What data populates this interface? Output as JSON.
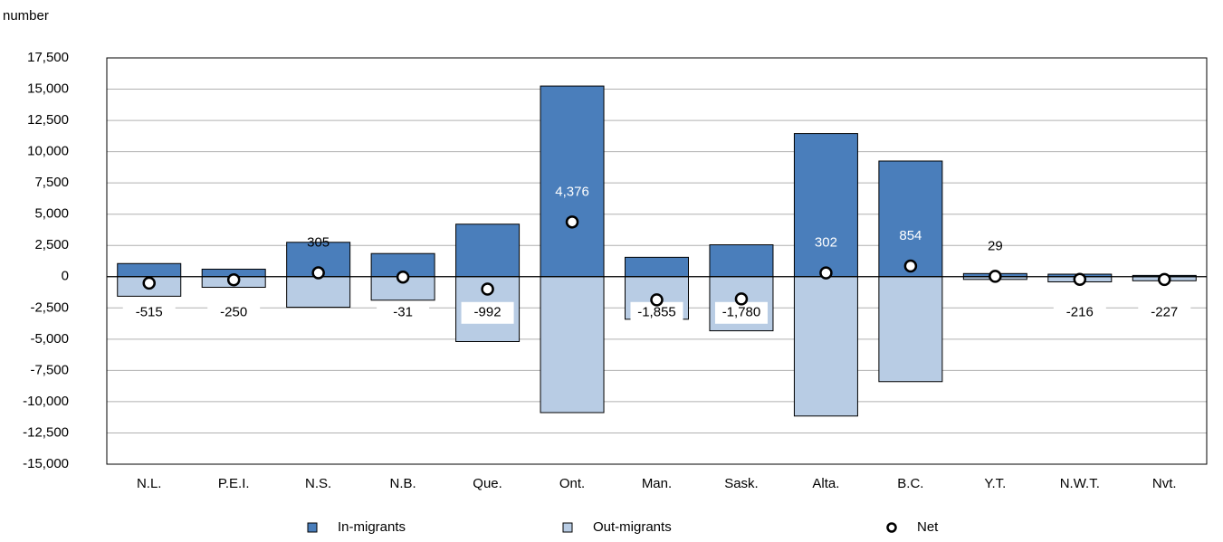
{
  "chart_data": {
    "type": "bar",
    "y_label": "number",
    "categories": [
      "N.L.",
      "P.E.I.",
      "N.S.",
      "N.B.",
      "Que.",
      "Ont.",
      "Man.",
      "Sask.",
      "Alta.",
      "B.C.",
      "Y.T.",
      "N.W.T.",
      "Nvt."
    ],
    "series": [
      {
        "name": "In-migrants",
        "type": "bar",
        "color": "#4a7ebb",
        "values": [
          1050,
          600,
          2750,
          1850,
          4200,
          15250,
          1550,
          2550,
          11450,
          9250,
          250,
          200,
          100
        ]
      },
      {
        "name": "Out-migrants",
        "type": "bar",
        "color": "#b8cce4",
        "values": [
          -1565,
          -850,
          -2445,
          -1881,
          -5192,
          -10874,
          -3405,
          -4330,
          -11148,
          -8396,
          -221,
          -416,
          -327
        ]
      },
      {
        "name": "Net",
        "type": "scatter",
        "color": "#ffffff",
        "values": [
          -515,
          -250,
          305,
          -31,
          -992,
          4376,
          -1855,
          -1780,
          302,
          854,
          29,
          -216,
          -227
        ],
        "value_labels": [
          "-515",
          "-250",
          "305",
          "-31",
          "-992",
          "4,376",
          "-1,855",
          "-1,780",
          "302",
          "854",
          "29",
          "-216",
          "-227"
        ]
      }
    ],
    "ylim": [
      -15000,
      17500
    ],
    "yticks": [
      {
        "value": -15000,
        "label": "-15,000"
      },
      {
        "value": -12500,
        "label": "-12,500"
      },
      {
        "value": -10000,
        "label": "-10,000"
      },
      {
        "value": -7500,
        "label": "-7,500"
      },
      {
        "value": -5000,
        "label": "-5,000"
      },
      {
        "value": -2500,
        "label": "-2,500"
      },
      0,
      {
        "value": 2500,
        "label": "2,500"
      },
      {
        "value": 5000,
        "label": "5,000"
      },
      {
        "value": 7500,
        "label": "7,500"
      },
      {
        "value": 10000,
        "label": "10,000"
      },
      {
        "value": 12500,
        "label": "12,500"
      },
      {
        "value": 15000,
        "label": "15,000"
      },
      {
        "value": 17500,
        "label": "17,500"
      }
    ],
    "grid": true,
    "legend": "bottom"
  }
}
